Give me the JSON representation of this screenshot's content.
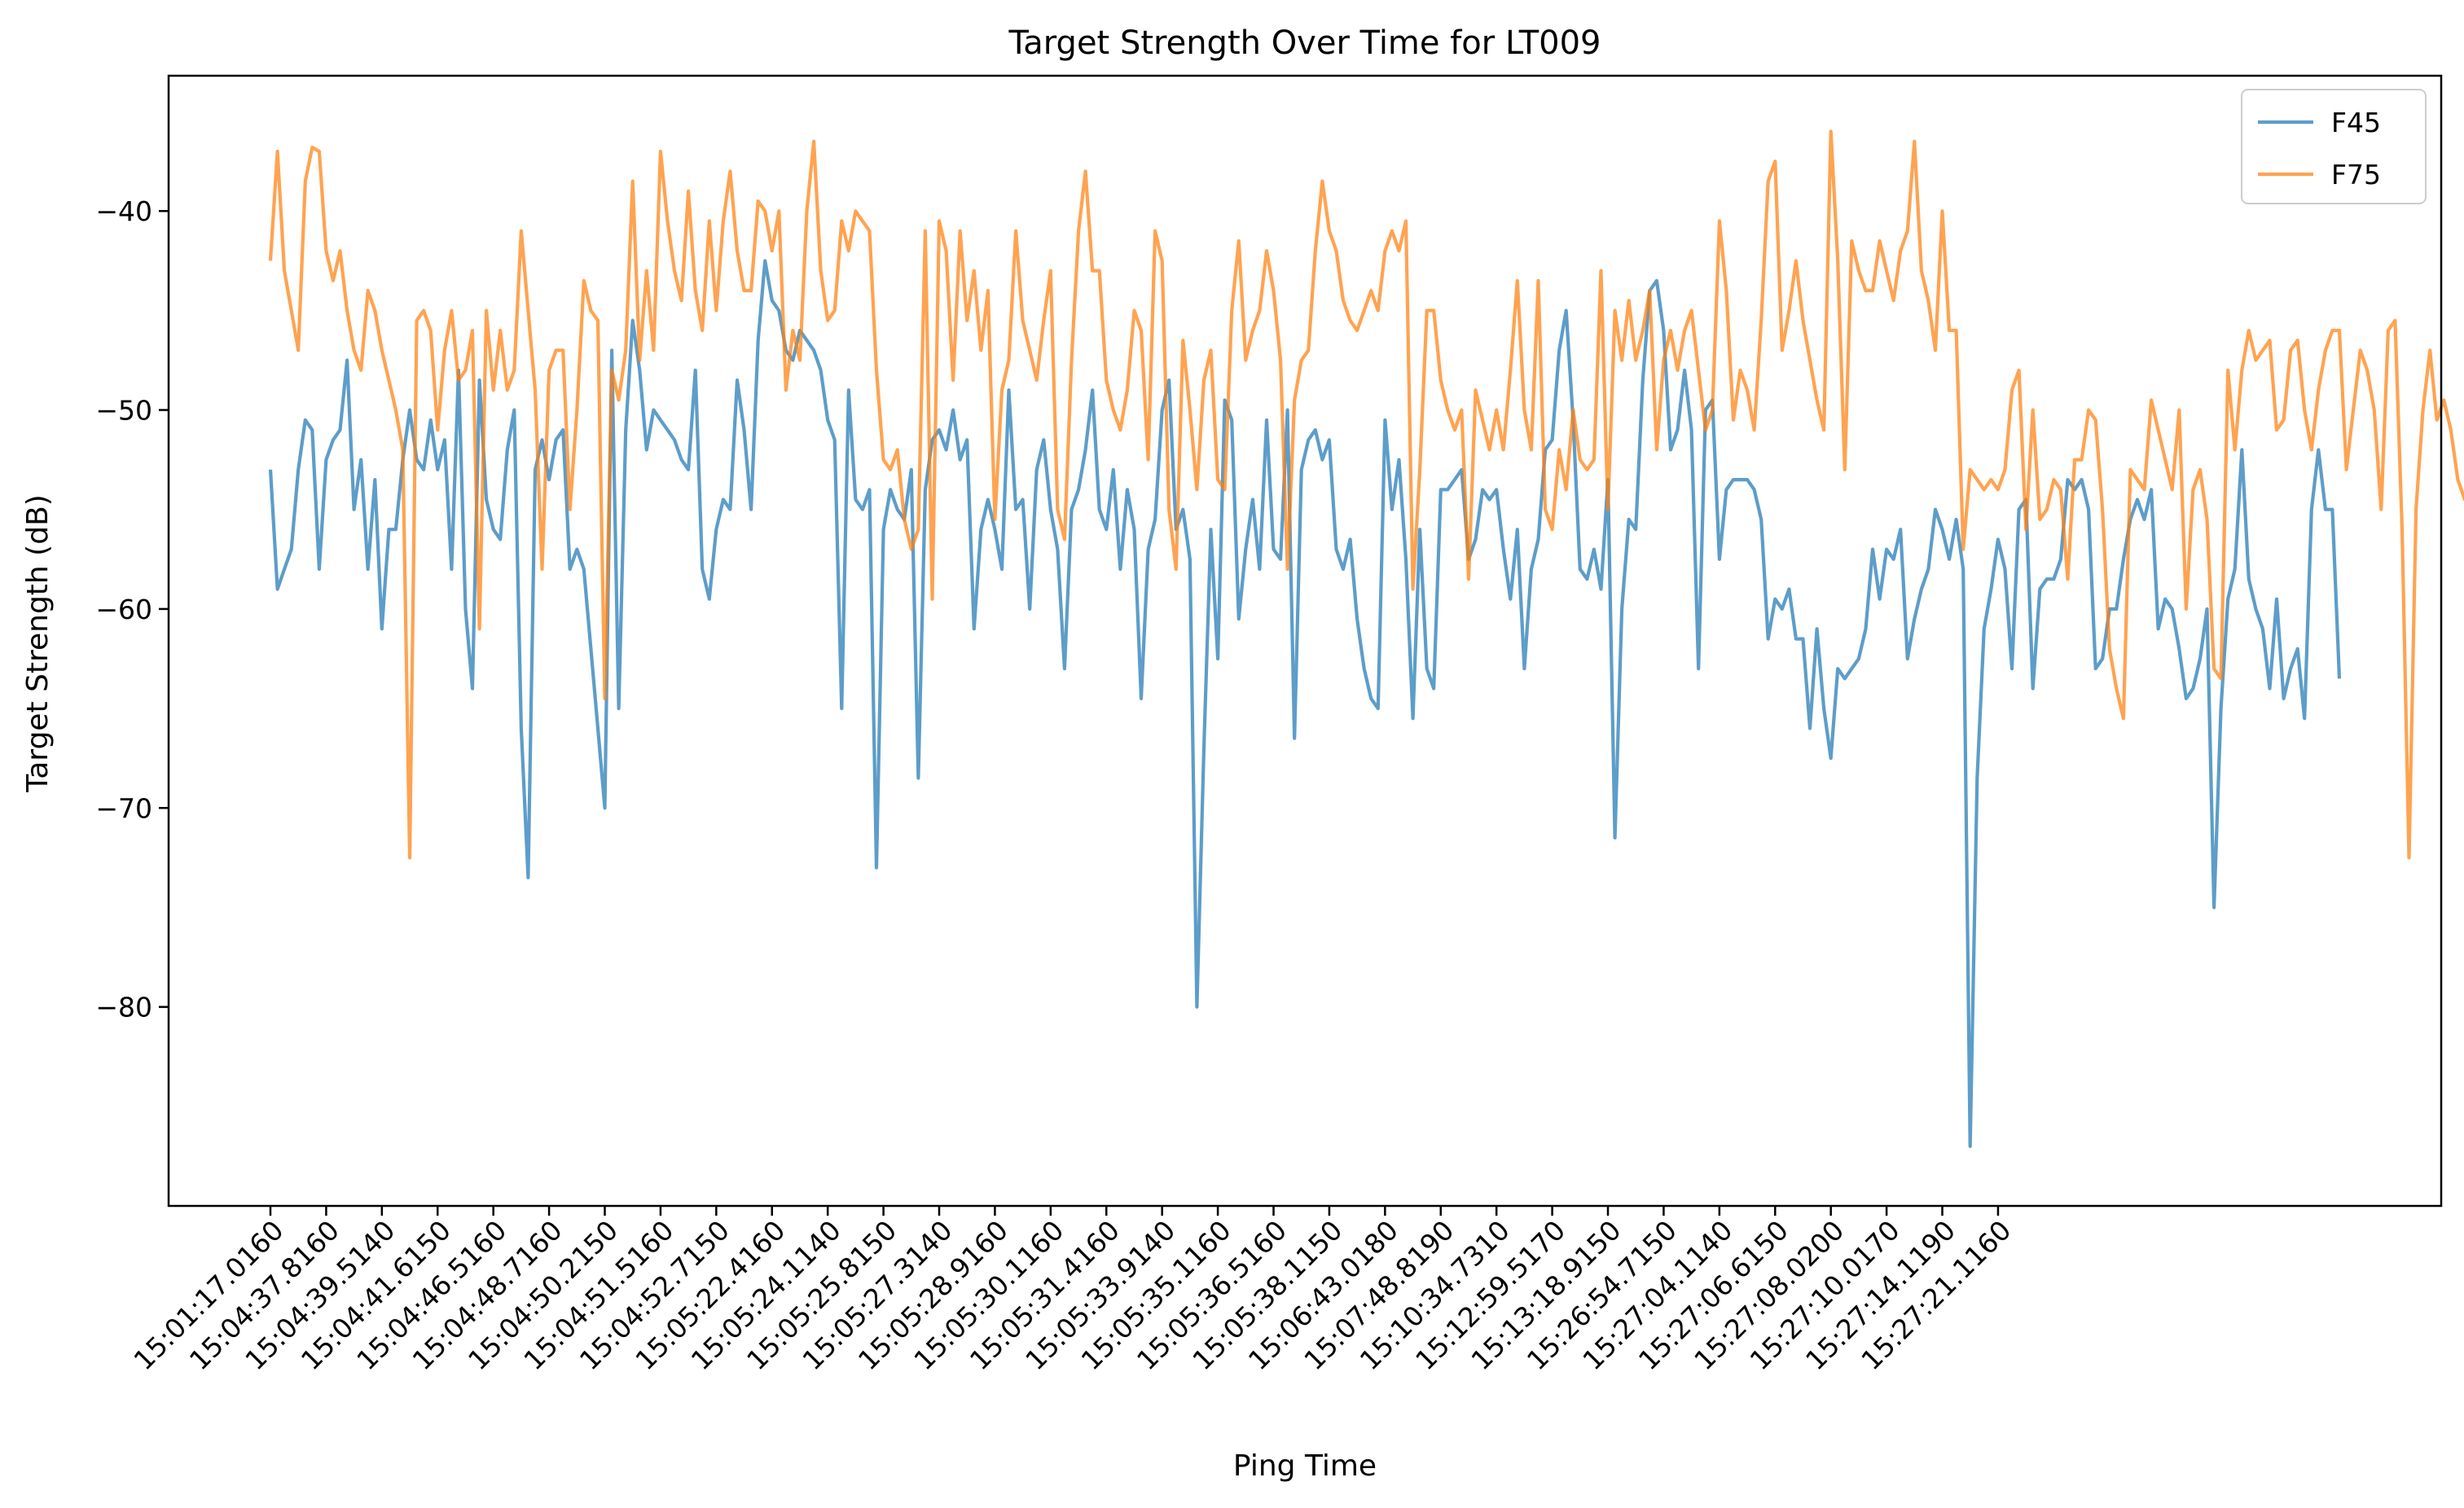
{
  "chart_data": {
    "type": "line",
    "title": "Target Strength Over Time for LT009",
    "xlabel": "Ping Time",
    "ylabel": "Target Strength (dB)",
    "ylim": [
      -90.0,
      -33.2
    ],
    "yticks": [
      -40,
      -50,
      -60,
      -70,
      -80
    ],
    "grid": false,
    "legend_position": "top-right",
    "x_tick_labels": [
      "15:01:17.0160",
      "15:04:37.8160",
      "15:04:39.5140",
      "15:04:41.6150",
      "15:04:46.5160",
      "15:04:48.7160",
      "15:04:50.2150",
      "15:04:51.5160",
      "15:04:52.7150",
      "15:05:22.4160",
      "15:05:24.1140",
      "15:05:25.8150",
      "15:05:27.3140",
      "15:05:28.9160",
      "15:05:30.1160",
      "15:05:31.4160",
      "15:05:33.9140",
      "15:05:35.1160",
      "15:05:36.5160",
      "15:05:38.1150",
      "15:06:43.0180",
      "15:07:48.8190",
      "15:10:34.7310",
      "15:12:59.5170",
      "15:13:18.9150",
      "15:26:54.7150",
      "15:27:04.1140",
      "15:27:06.6150",
      "15:27:08.0200",
      "15:27:10.0170",
      "15:27:14.1190",
      "15:27:21.1160"
    ],
    "points_per_tick": 8,
    "series": [
      {
        "name": "F45",
        "color": "#1f77b4",
        "values": [
          -53,
          -59,
          -58,
          -57,
          -53,
          -50.5,
          -51,
          -58,
          -52.5,
          -51.5,
          -51,
          -47.5,
          -55,
          -52.5,
          -58,
          -53.5,
          -61,
          -56,
          -56,
          -52.5,
          -50,
          -52.5,
          -53,
          -50.5,
          -53,
          -51.5,
          -58,
          -48,
          -60,
          -64,
          -48.5,
          -54.5,
          -56,
          -56.5,
          -52,
          -50,
          -66,
          -73.5,
          -53,
          -51.5,
          -53.5,
          -51.5,
          -51,
          -58,
          -57,
          -58,
          -62,
          -66,
          -70,
          -47,
          -65,
          -51,
          -45.5,
          -48,
          -52,
          -50,
          -50.5,
          -51,
          -51.5,
          -52.5,
          -53,
          -48,
          -58,
          -59.5,
          -56,
          -54.5,
          -55,
          -48.5,
          -51,
          -55,
          -46.5,
          -42.5,
          -44.5,
          -45,
          -47,
          -47.5,
          -46,
          -46.5,
          -47,
          -48,
          -50.5,
          -51.5,
          -65,
          -49,
          -54.5,
          -55,
          -54,
          -73,
          -56,
          -54,
          -55,
          -55.5,
          -53,
          -68.5,
          -54,
          -51.5,
          -51,
          -52,
          -50,
          -52.5,
          -51.5,
          -61,
          -56,
          -54.5,
          -56,
          -58,
          -49,
          -55,
          -54.5,
          -60,
          -53,
          -51.5,
          -55,
          -57,
          -63,
          -55,
          -54,
          -52,
          -49,
          -55,
          -56,
          -53,
          -58,
          -54,
          -56,
          -64.5,
          -57,
          -55.5,
          -50,
          -48.5,
          -56,
          -55,
          -57.5,
          -80,
          -67,
          -56,
          -62.5,
          -49.5,
          -50.5,
          -60.5,
          -57,
          -54.5,
          -58,
          -50.5,
          -57,
          -57.5,
          -50,
          -66.5,
          -53,
          -51.5,
          -51,
          -52.5,
          -51.5,
          -57,
          -58,
          -56.5,
          -60.5,
          -63,
          -64.5,
          -65,
          -50.5,
          -55,
          -52.5,
          -57.5,
          -65.5,
          -56,
          -63,
          -64,
          -54,
          -54,
          -53.5,
          -53,
          -57.5,
          -56.5,
          -54,
          -54.5,
          -54,
          -57,
          -59.5,
          -56,
          -63,
          -58,
          -56.5,
          -52,
          -51.5,
          -47,
          -45,
          -50.5,
          -58,
          -58.5,
          -57,
          -59,
          -53.5,
          -71.5,
          -60,
          -55.5,
          -56,
          -48.5,
          -44,
          -43.5,
          -46,
          -52,
          -51,
          -48,
          -51,
          -63,
          -50,
          -49.5,
          -57.5,
          -54,
          -53.5,
          -53.5,
          -53.5,
          -54,
          -55.5,
          -61.5,
          -59.5,
          -60,
          -59,
          -61.5,
          -61.5,
          -66,
          -61,
          -65,
          -67.5,
          -63,
          -63.5,
          -63,
          -62.5,
          -61,
          -57,
          -59.5,
          -57,
          -57.5,
          -56,
          -62.5,
          -60.5,
          -59,
          -58,
          -55,
          -56,
          -57.5,
          -55.5,
          -58,
          -87,
          -68.5,
          -61,
          -59,
          -56.5,
          -58,
          -63,
          -55,
          -54.5,
          -64,
          -59,
          -58.5,
          -58.5,
          -57.5,
          -53.5,
          -54,
          -53.5,
          -55,
          -63,
          -62.5,
          -60,
          -60,
          -57.5,
          -55.5,
          -54.5,
          -55.5,
          -54,
          -61,
          -59.5,
          -60,
          -62,
          -64.5,
          -64,
          -62.5,
          -60,
          -75,
          -65,
          -59.5,
          -58,
          -52,
          -58.5,
          -60,
          -61,
          -64,
          -59.5,
          -64.5,
          -63,
          -62,
          -65.5,
          -55,
          -52,
          -55,
          -55,
          -63.5
        ]
      },
      {
        "name": "F75",
        "color": "#ff7f0e",
        "values": [
          -42.5,
          -37,
          -43,
          -45,
          -47,
          -38.5,
          -36.8,
          -37,
          -42,
          -43.5,
          -42,
          -45,
          -47,
          -48,
          -44,
          -45,
          -47,
          -48.5,
          -50,
          -52,
          -72.5,
          -45.5,
          -45,
          -46,
          -51,
          -47,
          -45,
          -48.5,
          -48,
          -46,
          -61,
          -45,
          -49,
          -46,
          -49,
          -48,
          -41,
          -45,
          -49,
          -58,
          -48,
          -47,
          -47,
          -55,
          -50,
          -43.5,
          -45,
          -45.5,
          -64.5,
          -48,
          -49.5,
          -47,
          -38.5,
          -47.5,
          -43,
          -47,
          -37,
          -40.5,
          -43,
          -44.5,
          -39,
          -44,
          -46,
          -40.5,
          -45,
          -40.5,
          -38,
          -42,
          -44,
          -44,
          -39.5,
          -40,
          -42,
          -40,
          -49,
          -46,
          -47.5,
          -40,
          -36.5,
          -43,
          -45.5,
          -45,
          -40.5,
          -42,
          -40,
          -40.5,
          -41,
          -48,
          -52.5,
          -53,
          -52,
          -55.5,
          -57,
          -56,
          -41,
          -59.5,
          -40.5,
          -42,
          -48.5,
          -41,
          -45.5,
          -43,
          -47,
          -44,
          -55.5,
          -49,
          -47.5,
          -41,
          -45.5,
          -47,
          -48.5,
          -45.5,
          -43,
          -55,
          -56.5,
          -47.5,
          -41,
          -38,
          -43,
          -43,
          -48.5,
          -50,
          -51,
          -49,
          -45,
          -46,
          -52.5,
          -41,
          -42.5,
          -55,
          -58,
          -46.5,
          -50,
          -54,
          -48.5,
          -47,
          -53.5,
          -54,
          -45,
          -41.5,
          -47.5,
          -46,
          -45,
          -42,
          -44,
          -47.5,
          -58,
          -49.5,
          -47.5,
          -47,
          -42,
          -38.5,
          -41,
          -42,
          -44.5,
          -45.5,
          -46,
          -45,
          -44,
          -45,
          -42,
          -41,
          -42,
          -40.5,
          -59,
          -53,
          -45,
          -45,
          -48.5,
          -50,
          -51,
          -50,
          -58.5,
          -49,
          -50.5,
          -52,
          -50,
          -52,
          -48,
          -43.5,
          -50,
          -52,
          -43.5,
          -55,
          -56,
          -52,
          -54,
          -50,
          -52.5,
          -53,
          -52.5,
          -43,
          -55,
          -45,
          -47.5,
          -44.5,
          -47.5,
          -46,
          -44,
          -52,
          -47.5,
          -46,
          -48,
          -46,
          -45,
          -48,
          -51,
          -50,
          -40.5,
          -44,
          -50.5,
          -48,
          -49,
          -51,
          -45.5,
          -38.5,
          -37.5,
          -47,
          -45,
          -42.5,
          -45.5,
          -47.5,
          -49.5,
          -51,
          -36,
          -42.5,
          -53,
          -41.5,
          -43,
          -44,
          -44,
          -41.5,
          -43,
          -44.5,
          -42,
          -41,
          -36.5,
          -43,
          -44.5,
          -47,
          -40,
          -46,
          -46,
          -57,
          -53,
          -53.5,
          -54,
          -53.5,
          -54,
          -53,
          -49,
          -48,
          -56,
          -50,
          -55.5,
          -55,
          -53.5,
          -54,
          -58.5,
          -52.5,
          -52.5,
          -50,
          -50.5,
          -55,
          -62,
          -64,
          -65.5,
          -53,
          -53.5,
          -54,
          -49.5,
          -51,
          -52.5,
          -54,
          -50,
          -60,
          -54,
          -53,
          -55.5,
          -63,
          -63.5,
          -48,
          -52,
          -48,
          -46,
          -47.5,
          -47,
          -46.5,
          -51,
          -50.5,
          -47,
          -46.5,
          -50,
          -52,
          -49,
          -47,
          -46,
          -46,
          -53,
          -50,
          -47,
          -48,
          -50,
          -55,
          -46,
          -45.5,
          -56,
          -72.5,
          -55,
          -50,
          -47,
          -50.5,
          -49.5,
          -51,
          -53.5,
          -54.5,
          -54,
          -53,
          -51,
          -49
        ]
      }
    ]
  }
}
